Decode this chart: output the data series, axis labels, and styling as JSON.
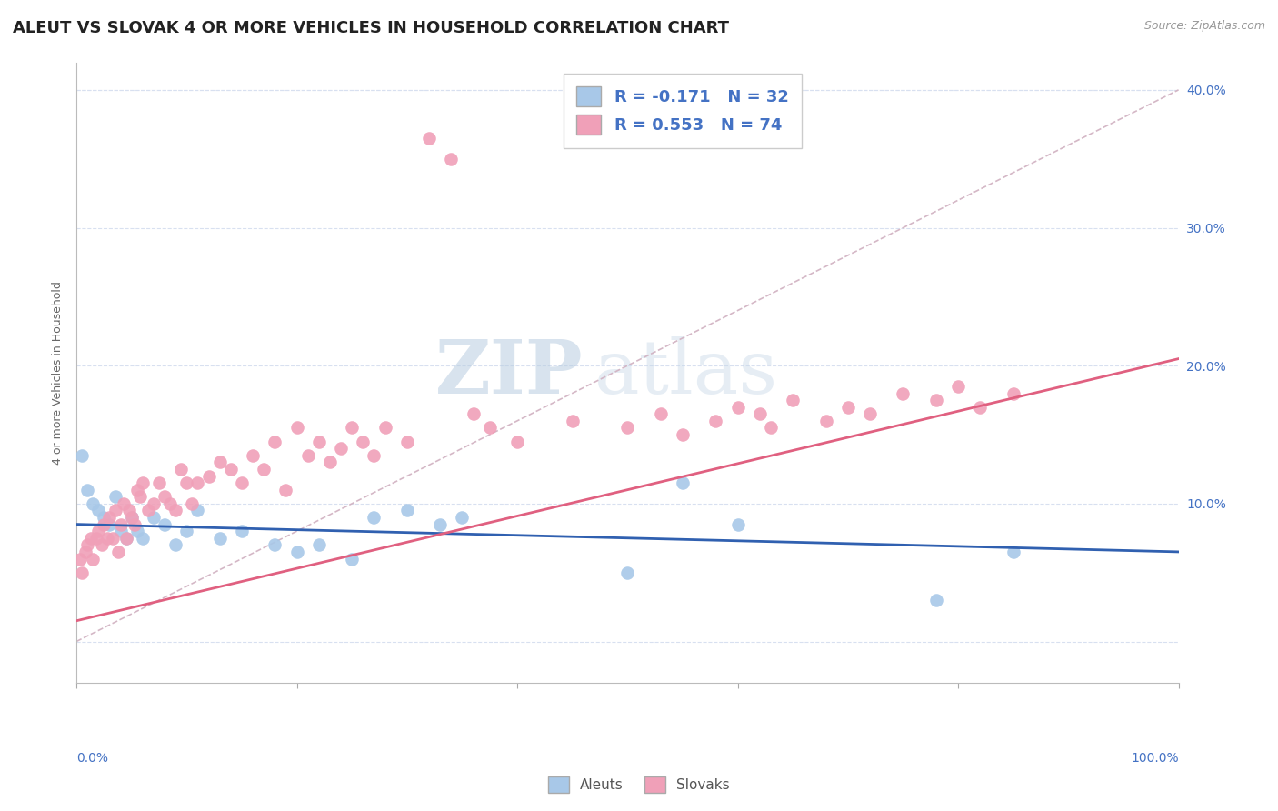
{
  "title": "ALEUT VS SLOVAK 4 OR MORE VEHICLES IN HOUSEHOLD CORRELATION CHART",
  "source": "Source: ZipAtlas.com",
  "ylabel": "4 or more Vehicles in Household",
  "aleut_color": "#a8c8e8",
  "slovak_color": "#f0a0b8",
  "aleut_line_color": "#3060b0",
  "slovak_line_color": "#e06080",
  "diagonal_color": "#d0b0c0",
  "watermark_zip": "ZIP",
  "watermark_atlas": "atlas",
  "aleut_R": -0.171,
  "aleut_N": 32,
  "slovak_R": 0.553,
  "slovak_N": 74,
  "aleut_trend_x0": 0,
  "aleut_trend_y0": 8.5,
  "aleut_trend_x1": 100,
  "aleut_trend_y1": 6.5,
  "slovak_trend_x0": 0,
  "slovak_trend_y0": 1.5,
  "slovak_trend_x1": 100,
  "slovak_trend_y1": 20.5,
  "aleuts_x": [
    0.5,
    1.0,
    1.5,
    2.0,
    2.5,
    3.0,
    3.5,
    4.0,
    4.5,
    5.0,
    5.5,
    6.0,
    7.0,
    8.0,
    9.0,
    10.0,
    11.0,
    13.0,
    15.0,
    18.0,
    20.0,
    22.0,
    25.0,
    27.0,
    30.0,
    33.0,
    35.0,
    50.0,
    55.0,
    60.0,
    78.0,
    85.0
  ],
  "aleuts_y": [
    13.5,
    11.0,
    10.0,
    9.5,
    9.0,
    8.5,
    10.5,
    8.0,
    7.5,
    9.0,
    8.0,
    7.5,
    9.0,
    8.5,
    7.0,
    8.0,
    9.5,
    7.5,
    8.0,
    7.0,
    6.5,
    7.0,
    6.0,
    9.0,
    9.5,
    8.5,
    9.0,
    5.0,
    11.5,
    8.5,
    3.0,
    6.5
  ],
  "slovaks_x": [
    0.3,
    0.5,
    0.8,
    1.0,
    1.3,
    1.5,
    1.8,
    2.0,
    2.3,
    2.5,
    2.8,
    3.0,
    3.3,
    3.5,
    3.8,
    4.0,
    4.3,
    4.5,
    4.8,
    5.0,
    5.3,
    5.5,
    5.8,
    6.0,
    6.5,
    7.0,
    7.5,
    8.0,
    8.5,
    9.0,
    9.5,
    10.0,
    10.5,
    11.0,
    12.0,
    13.0,
    14.0,
    15.0,
    16.0,
    17.0,
    18.0,
    19.0,
    20.0,
    21.0,
    22.0,
    23.0,
    24.0,
    25.0,
    26.0,
    27.0,
    28.0,
    30.0,
    32.0,
    34.0,
    36.0,
    37.5,
    40.0,
    45.0,
    50.0,
    53.0,
    55.0,
    58.0,
    60.0,
    62.0,
    63.0,
    65.0,
    68.0,
    70.0,
    72.0,
    75.0,
    78.0,
    80.0,
    82.0,
    85.0
  ],
  "slovaks_y": [
    6.0,
    5.0,
    6.5,
    7.0,
    7.5,
    6.0,
    7.5,
    8.0,
    7.0,
    8.5,
    7.5,
    9.0,
    7.5,
    9.5,
    6.5,
    8.5,
    10.0,
    7.5,
    9.5,
    9.0,
    8.5,
    11.0,
    10.5,
    11.5,
    9.5,
    10.0,
    11.5,
    10.5,
    10.0,
    9.5,
    12.5,
    11.5,
    10.0,
    11.5,
    12.0,
    13.0,
    12.5,
    11.5,
    13.5,
    12.5,
    14.5,
    11.0,
    15.5,
    13.5,
    14.5,
    13.0,
    14.0,
    15.5,
    14.5,
    13.5,
    15.5,
    14.5,
    36.5,
    35.0,
    16.5,
    15.5,
    14.5,
    16.0,
    15.5,
    16.5,
    15.0,
    16.0,
    17.0,
    16.5,
    15.5,
    17.5,
    16.0,
    17.0,
    16.5,
    18.0,
    17.5,
    18.5,
    17.0,
    18.0
  ],
  "xlim": [
    0,
    100
  ],
  "ylim": [
    -3,
    42
  ],
  "yticks": [
    0,
    10,
    20,
    30,
    40
  ],
  "ytick_labels_right": [
    "",
    "10.0%",
    "20.0%",
    "30.0%",
    "40.0%"
  ],
  "background_color": "#ffffff",
  "grid_color": "#d8e0f0",
  "title_fontsize": 13,
  "axis_label_fontsize": 9,
  "tick_fontsize": 10
}
